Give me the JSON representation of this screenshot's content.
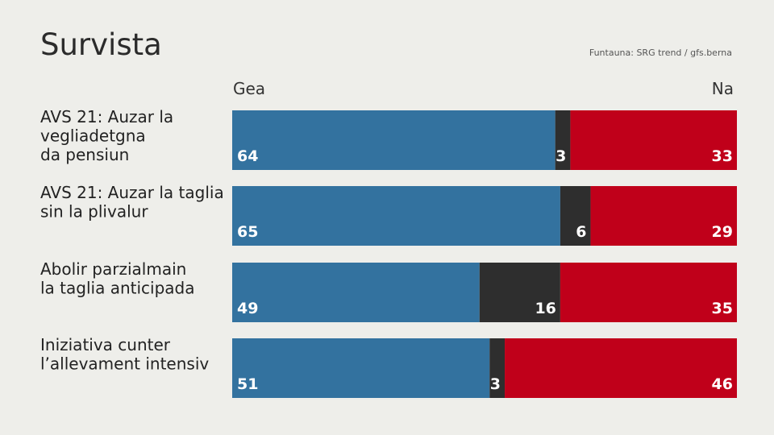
{
  "title": "Survista",
  "source": "Funtauna: SRG trend / gfs.berna",
  "colors": {
    "yes": "#33729f",
    "neutral": "#2e2e2e",
    "no": "#c0001a",
    "background": "#eeeeea"
  },
  "chart_data": {
    "type": "bar",
    "stacked": true,
    "orientation": "horizontal",
    "legend": [
      "Gea",
      "Na"
    ],
    "categories": [
      [
        "AVS 21: Auzar la",
        "vegliadetgna",
        "da pensiun"
      ],
      [
        "AVS 21: Auzar la taglia",
        "sin la plivalur"
      ],
      [
        "Abolir parzialmain",
        "la taglia anticipada"
      ],
      [
        "Iniziativa cunter",
        "l’allevament intensiv"
      ]
    ],
    "series": [
      {
        "name": "Gea",
        "values": [
          64,
          65,
          49,
          51
        ]
      },
      {
        "name": "",
        "values": [
          3,
          6,
          16,
          3
        ]
      },
      {
        "name": "Na",
        "values": [
          33,
          29,
          35,
          46
        ]
      }
    ],
    "xlim": [
      0,
      100
    ]
  }
}
